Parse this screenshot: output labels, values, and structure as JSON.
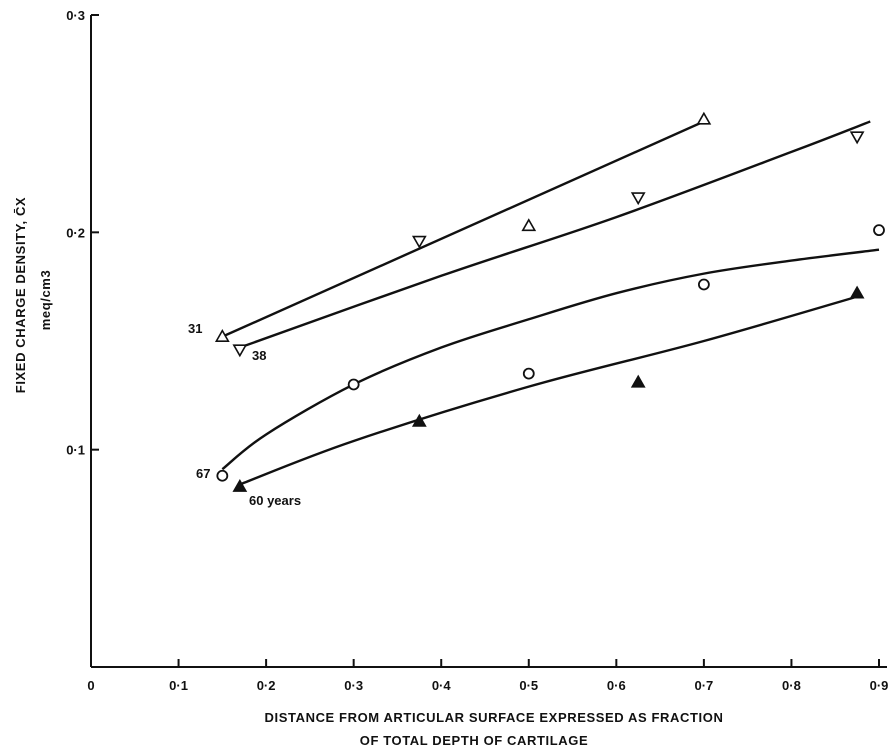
{
  "chart_data": {
    "type": "scatter",
    "title": "",
    "xlabel": [
      "DISTANCE FROM ARTICULAR SURFACE EXPRESSED AS FRACTION",
      "OF TOTAL DEPTH OF CARTILAGE"
    ],
    "ylabel": [
      "FIXED CHARGE DENSITY, C̄X",
      "meq/cm3"
    ],
    "xlim": [
      0,
      0.9
    ],
    "ylim": [
      0,
      0.3
    ],
    "xticks": [
      {
        "value": 0,
        "label": "0"
      },
      {
        "value": 0.1,
        "label": "0·1"
      },
      {
        "value": 0.2,
        "label": "0·2"
      },
      {
        "value": 0.3,
        "label": "0·3"
      },
      {
        "value": 0.4,
        "label": "0·4"
      },
      {
        "value": 0.5,
        "label": "0·5"
      },
      {
        "value": 0.6,
        "label": "0·6"
      },
      {
        "value": 0.7,
        "label": "0·7"
      },
      {
        "value": 0.8,
        "label": "0·8"
      },
      {
        "value": 0.9,
        "label": "0·9"
      }
    ],
    "yticks": [
      {
        "value": 0.1,
        "label": "0·1"
      },
      {
        "value": 0.2,
        "label": "0·2"
      },
      {
        "value": 0.3,
        "label": "0·3"
      }
    ],
    "grid": false,
    "legend": "none",
    "series": [
      {
        "name": "31",
        "marker": "triangle-up-open",
        "points": [
          [
            0.15,
            0.152
          ],
          [
            0.5,
            0.203
          ],
          [
            0.7,
            0.252
          ]
        ],
        "fit": [
          [
            0.15,
            0.152
          ],
          [
            0.7,
            0.251
          ]
        ]
      },
      {
        "name": "38",
        "marker": "triangle-down-open",
        "points": [
          [
            0.17,
            0.146
          ],
          [
            0.375,
            0.196
          ],
          [
            0.625,
            0.216
          ],
          [
            0.875,
            0.244
          ]
        ],
        "fit": [
          [
            0.17,
            0.147
          ],
          [
            0.4,
            0.18
          ],
          [
            0.6,
            0.207
          ],
          [
            0.8,
            0.237
          ],
          [
            0.89,
            0.251
          ]
        ]
      },
      {
        "name": "67",
        "marker": "circle-open",
        "points": [
          [
            0.15,
            0.088
          ],
          [
            0.3,
            0.13
          ],
          [
            0.5,
            0.135
          ],
          [
            0.7,
            0.176
          ],
          [
            0.9,
            0.201
          ]
        ],
        "fit": [
          [
            0.15,
            0.091
          ],
          [
            0.2,
            0.107
          ],
          [
            0.3,
            0.13
          ],
          [
            0.4,
            0.147
          ],
          [
            0.5,
            0.16
          ],
          [
            0.6,
            0.172
          ],
          [
            0.7,
            0.181
          ],
          [
            0.8,
            0.187
          ],
          [
            0.9,
            0.192
          ]
        ]
      },
      {
        "name": "60 years",
        "marker": "triangle-up-filled",
        "points": [
          [
            0.17,
            0.083
          ],
          [
            0.375,
            0.113
          ],
          [
            0.625,
            0.131
          ],
          [
            0.875,
            0.172
          ]
        ],
        "fit": [
          [
            0.17,
            0.084
          ],
          [
            0.3,
            0.104
          ],
          [
            0.5,
            0.129
          ],
          [
            0.7,
            0.15
          ],
          [
            0.88,
            0.171
          ]
        ]
      }
    ],
    "annotations": [
      {
        "text": "31"
      },
      {
        "text": "38"
      },
      {
        "text": "67"
      },
      {
        "text": "60 years"
      }
    ]
  }
}
